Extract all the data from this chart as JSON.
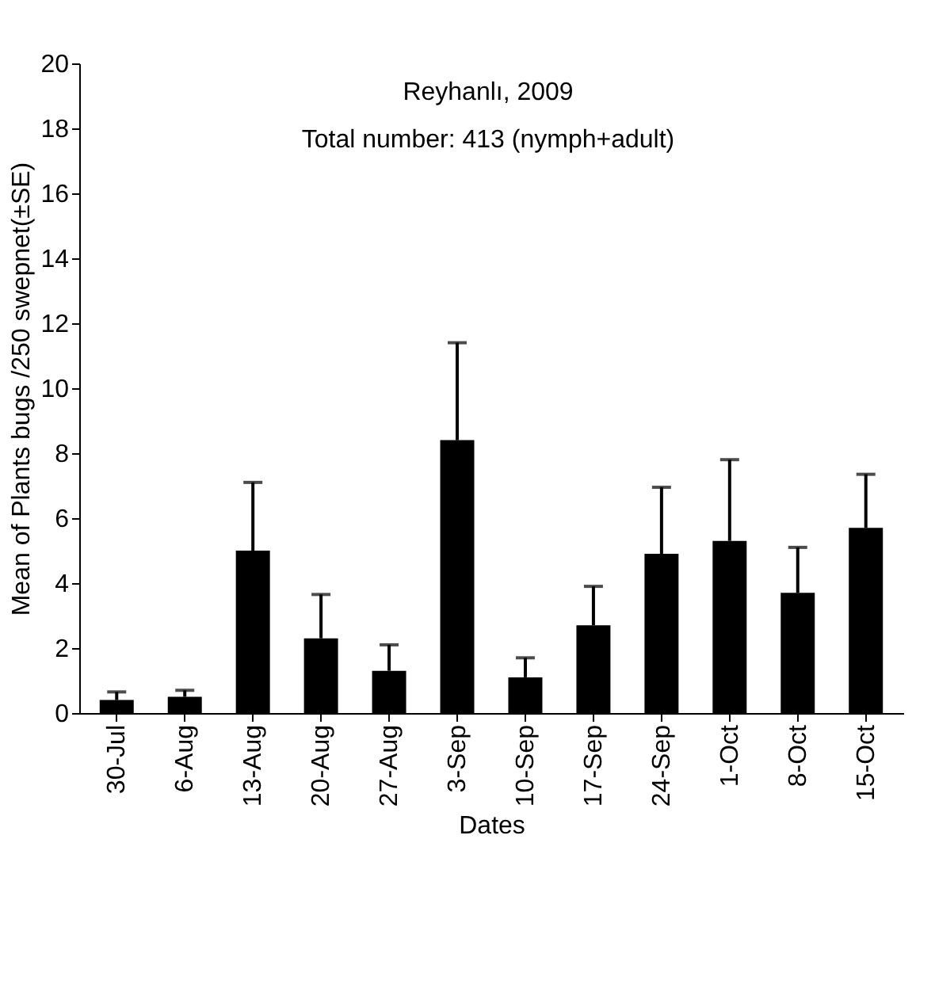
{
  "chart_data": {
    "type": "bar",
    "annotations": [
      "Reyhanlı, 2009",
      "Total number: 413 (nymph+adult)"
    ],
    "xlabel": "Dates",
    "ylabel": "Mean of Plants bugs /250 swepnet(±SE)",
    "categories": [
      "30-Jul",
      "6-Aug",
      "13-Aug",
      "20-Aug",
      "27-Aug",
      "3-Sep",
      "10-Sep",
      "17-Sep",
      "24-Sep",
      "1-Oct",
      "8-Oct",
      "15-Oct"
    ],
    "values": [
      0.4,
      0.5,
      5.0,
      2.3,
      1.3,
      8.4,
      1.1,
      2.7,
      4.9,
      5.3,
      3.7,
      5.7
    ],
    "errors": [
      [
        0.4,
        0.65
      ],
      [
        0.5,
        0.7
      ],
      [
        5.0,
        7.1
      ],
      [
        2.3,
        3.65
      ],
      [
        1.3,
        2.1
      ],
      [
        8.4,
        11.4
      ],
      [
        1.1,
        1.7
      ],
      [
        2.7,
        3.9
      ],
      [
        4.9,
        6.95
      ],
      [
        5.3,
        7.8
      ],
      [
        3.7,
        5.1
      ],
      [
        5.7,
        7.35
      ]
    ],
    "color": "#000000",
    "ylim": [
      0,
      20
    ],
    "yticks": [
      0,
      2,
      4,
      6,
      8,
      10,
      12,
      14,
      16,
      18,
      20
    ],
    "grid": false
  }
}
